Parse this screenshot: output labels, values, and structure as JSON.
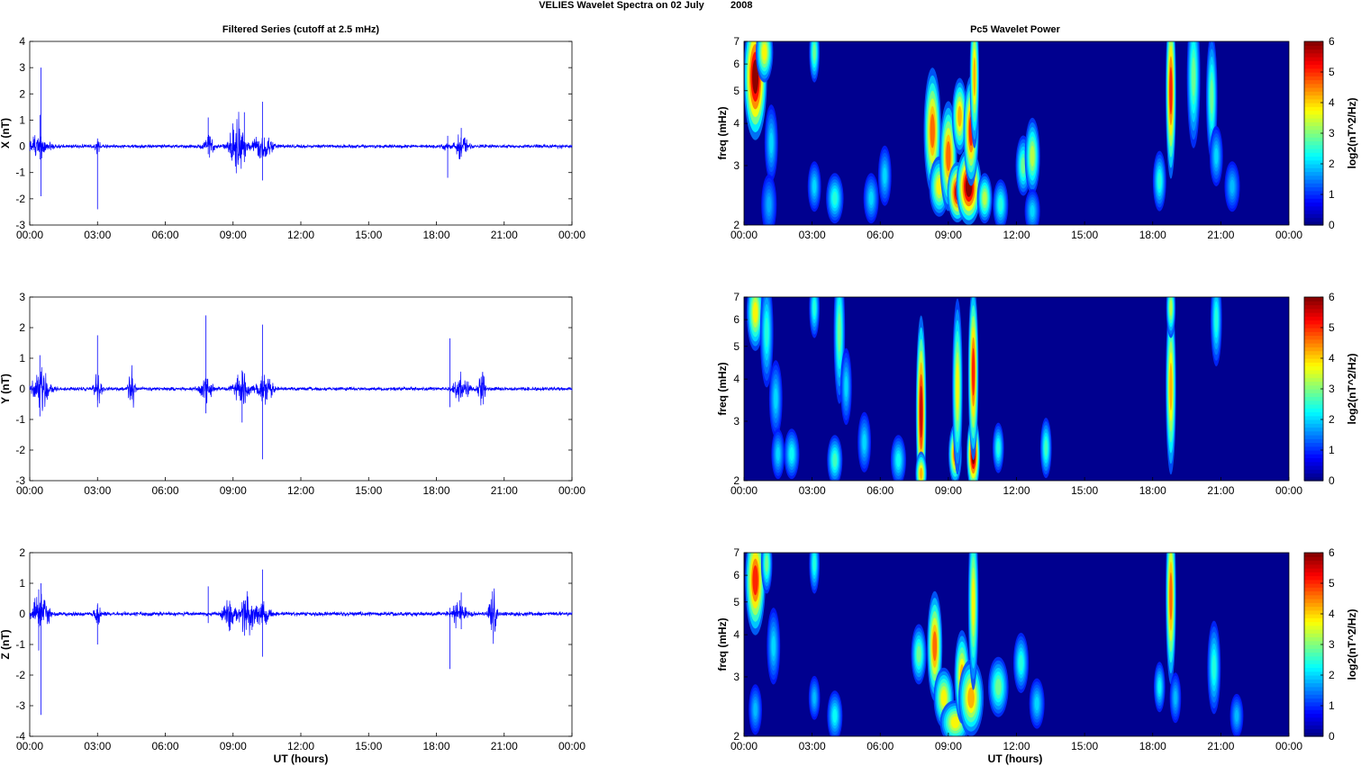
{
  "suptitle": "VELIES Wavelet Spectra on 02 July",
  "suptitle_year": "2008",
  "left_title": "Filtered Series (cutoff at 2.5 mHz)",
  "right_title": "Pc5 Wavelet Power",
  "xlabel": "UT (hours)",
  "colors": {
    "line": "#0000ff",
    "background": "#00008f"
  },
  "chart_data": [
    {
      "type": "line",
      "ylabel": "X (nT)",
      "ylim": [
        -3,
        4
      ],
      "yticks": [
        "-3",
        "-2",
        "-1",
        "0",
        "1",
        "2",
        "3",
        "4"
      ],
      "xlim": [
        0,
        24
      ],
      "xticks": [
        "00:00",
        "03:00",
        "06:00",
        "09:00",
        "12:00",
        "15:00",
        "18:00",
        "21:00",
        "00:00"
      ],
      "series": [
        {
          "color": "#0000ff",
          "noise": 0.08,
          "bursts": [
            [
              0.35,
              0.5,
              0.45
            ],
            [
              3.0,
              0.3,
              0.12
            ],
            [
              7.9,
              0.5,
              0.2
            ],
            [
              9.2,
              1.4,
              0.3
            ],
            [
              10.3,
              0.6,
              0.4
            ],
            [
              18.4,
              0.15,
              0.1
            ],
            [
              19.1,
              0.5,
              0.25
            ]
          ],
          "spikes": [
            [
              0.5,
              3.0,
              -1.9
            ],
            [
              0.45,
              1.2,
              -0.5
            ],
            [
              3.0,
              0.3,
              -2.4
            ],
            [
              7.9,
              1.1,
              -0.3
            ],
            [
              9.5,
              1.3,
              -0.6
            ],
            [
              10.3,
              1.7,
              -1.3
            ],
            [
              18.5,
              0.4,
              -1.2
            ],
            [
              19.1,
              0.7,
              -0.4
            ]
          ]
        }
      ]
    },
    {
      "type": "heatmap",
      "ylabel": "freq (mHz)",
      "yticks": [
        "2",
        "3",
        "4",
        "5",
        "6",
        "7"
      ],
      "ylim": [
        2,
        7
      ],
      "yscale": "log",
      "xlim": [
        0,
        24
      ],
      "xticks": [
        "00:00",
        "03:00",
        "06:00",
        "09:00",
        "12:00",
        "15:00",
        "18:00",
        "21:00",
        "00:00"
      ],
      "colorbar": {
        "label": "log2(nT^2/Hz)",
        "ticks": [
          "0",
          "1",
          "2",
          "3",
          "4",
          "5",
          "6"
        ],
        "range": [
          0,
          6
        ]
      },
      "blobs": [
        [
          0.5,
          5.5,
          0.18,
          0.35,
          6
        ],
        [
          0.9,
          6.5,
          0.12,
          0.15,
          3.5
        ],
        [
          1.2,
          3.5,
          0.08,
          0.2,
          1.5
        ],
        [
          1.1,
          2.3,
          0.1,
          0.15,
          1.2
        ],
        [
          3.1,
          6.5,
          0.05,
          0.15,
          2.5
        ],
        [
          3.1,
          2.6,
          0.08,
          0.12,
          1.5
        ],
        [
          4.0,
          2.4,
          0.12,
          0.12,
          2.0
        ],
        [
          5.6,
          2.4,
          0.1,
          0.12,
          1.5
        ],
        [
          6.2,
          2.8,
          0.08,
          0.15,
          1.5
        ],
        [
          8.3,
          3.8,
          0.12,
          0.35,
          4.5
        ],
        [
          8.6,
          2.6,
          0.15,
          0.15,
          3.5
        ],
        [
          9.0,
          3.2,
          0.12,
          0.3,
          4.5
        ],
        [
          9.4,
          2.5,
          0.15,
          0.15,
          5.5
        ],
        [
          9.5,
          4.2,
          0.1,
          0.2,
          4.0
        ],
        [
          9.9,
          2.6,
          0.2,
          0.2,
          6
        ],
        [
          10.0,
          3.8,
          0.1,
          0.3,
          5.0
        ],
        [
          10.15,
          5.5,
          0.04,
          0.4,
          4.0
        ],
        [
          10.6,
          2.4,
          0.1,
          0.12,
          3.0
        ],
        [
          11.3,
          2.3,
          0.1,
          0.12,
          2.0
        ],
        [
          12.3,
          3.0,
          0.1,
          0.15,
          2.5
        ],
        [
          12.7,
          3.2,
          0.1,
          0.2,
          3.0
        ],
        [
          12.7,
          2.2,
          0.1,
          0.1,
          1.5
        ],
        [
          18.3,
          2.7,
          0.08,
          0.15,
          2.0
        ],
        [
          18.8,
          5.0,
          0.05,
          0.5,
          5.0
        ],
        [
          19.8,
          5.5,
          0.08,
          0.4,
          2.5
        ],
        [
          20.6,
          4.8,
          0.06,
          0.35,
          2.5
        ],
        [
          20.8,
          3.2,
          0.08,
          0.15,
          1.5
        ],
        [
          21.5,
          2.6,
          0.1,
          0.12,
          1.3
        ]
      ]
    },
    {
      "type": "line",
      "ylabel": "Y (nT)",
      "ylim": [
        -3,
        3
      ],
      "yticks": [
        "-3",
        "-2",
        "-1",
        "0",
        "1",
        "2",
        "3"
      ],
      "xlim": [
        0,
        24
      ],
      "xticks": [
        "00:00",
        "03:00",
        "06:00",
        "09:00",
        "12:00",
        "15:00",
        "18:00",
        "21:00",
        "00:00"
      ],
      "series": [
        {
          "color": "#0000ff",
          "noise": 0.07,
          "bursts": [
            [
              0.5,
              0.8,
              0.35
            ],
            [
              3.0,
              0.6,
              0.15
            ],
            [
              4.5,
              1.0,
              0.12
            ],
            [
              7.8,
              0.5,
              0.25
            ],
            [
              9.4,
              0.7,
              0.3
            ],
            [
              10.4,
              0.5,
              0.35
            ],
            [
              19.1,
              0.6,
              0.3
            ],
            [
              20.0,
              1.0,
              0.12
            ]
          ],
          "spikes": [
            [
              3.0,
              1.75,
              -0.6
            ],
            [
              7.8,
              2.4,
              -0.8
            ],
            [
              9.4,
              0.6,
              -1.1
            ],
            [
              10.3,
              2.1,
              -2.3
            ],
            [
              18.6,
              1.65,
              -0.6
            ],
            [
              0.45,
              1.1,
              -0.9
            ]
          ]
        }
      ]
    },
    {
      "type": "heatmap",
      "ylabel": "freq (mHz)",
      "yticks": [
        "2",
        "3",
        "4",
        "5",
        "6",
        "7"
      ],
      "ylim": [
        2,
        7
      ],
      "yscale": "log",
      "xlim": [
        0,
        24
      ],
      "xticks": [
        "00:00",
        "03:00",
        "06:00",
        "09:00",
        "12:00",
        "15:00",
        "18:00",
        "21:00",
        "00:00"
      ],
      "colorbar": {
        "label": "log2(nT^2/Hz)",
        "ticks": [
          "0",
          "1",
          "2",
          "3",
          "4",
          "5",
          "6"
        ],
        "range": [
          0,
          6
        ]
      },
      "blobs": [
        [
          0.5,
          6.3,
          0.12,
          0.2,
          3.5
        ],
        [
          1.0,
          5.5,
          0.08,
          0.3,
          2.0
        ],
        [
          1.4,
          3.5,
          0.08,
          0.2,
          1.5
        ],
        [
          1.5,
          2.4,
          0.08,
          0.12,
          1.5
        ],
        [
          2.1,
          2.4,
          0.1,
          0.12,
          1.8
        ],
        [
          3.1,
          6.5,
          0.05,
          0.15,
          2.0
        ],
        [
          4.0,
          2.3,
          0.1,
          0.12,
          2.2
        ],
        [
          4.2,
          5.5,
          0.06,
          0.4,
          2.5
        ],
        [
          4.5,
          3.8,
          0.06,
          0.2,
          1.5
        ],
        [
          5.3,
          2.6,
          0.08,
          0.15,
          1.5
        ],
        [
          6.8,
          2.3,
          0.1,
          0.12,
          1.8
        ],
        [
          7.8,
          3.2,
          0.05,
          0.55,
          5.5
        ],
        [
          7.8,
          2.1,
          0.06,
          0.1,
          4.0
        ],
        [
          9.3,
          2.4,
          0.08,
          0.15,
          4.5
        ],
        [
          9.4,
          3.8,
          0.05,
          0.5,
          3.5
        ],
        [
          10.1,
          2.4,
          0.08,
          0.2,
          6.0
        ],
        [
          10.1,
          4.2,
          0.05,
          0.5,
          5.0
        ],
        [
          11.2,
          2.5,
          0.06,
          0.12,
          2.0
        ],
        [
          13.3,
          2.5,
          0.06,
          0.15,
          2.2
        ],
        [
          18.8,
          3.8,
          0.05,
          0.5,
          4.0
        ],
        [
          18.8,
          6.5,
          0.04,
          0.15,
          3.0
        ],
        [
          20.8,
          6.0,
          0.06,
          0.25,
          2.0
        ]
      ]
    },
    {
      "type": "line",
      "ylabel": "Z (nT)",
      "ylim": [
        -4,
        2
      ],
      "yticks": [
        "-4",
        "-3",
        "-2",
        "-1",
        "0",
        "1",
        "2"
      ],
      "xlim": [
        0,
        24
      ],
      "xticks": [
        "00:00",
        "03:00",
        "06:00",
        "09:00",
        "12:00",
        "15:00",
        "18:00",
        "21:00",
        "00:00"
      ],
      "series": [
        {
          "color": "#0000ff",
          "noise": 0.08,
          "bursts": [
            [
              0.5,
              0.8,
              0.35
            ],
            [
              3.0,
              0.5,
              0.12
            ],
            [
              8.8,
              0.6,
              0.25
            ],
            [
              9.6,
              0.8,
              0.3
            ],
            [
              10.3,
              0.4,
              0.3
            ],
            [
              19.0,
              0.5,
              0.3
            ],
            [
              20.5,
              1.0,
              0.15
            ]
          ],
          "spikes": [
            [
              0.5,
              1.0,
              -3.3
            ],
            [
              0.4,
              0.8,
              -1.2
            ],
            [
              3.0,
              0.3,
              -1.0
            ],
            [
              7.9,
              0.9,
              -0.3
            ],
            [
              10.3,
              1.45,
              -1.4
            ],
            [
              18.6,
              0.2,
              -1.8
            ],
            [
              19.1,
              0.7,
              -0.5
            ]
          ]
        }
      ]
    },
    {
      "type": "heatmap",
      "ylabel": "freq (mHz)",
      "yticks": [
        "2",
        "3",
        "4",
        "5",
        "6",
        "7"
      ],
      "ylim": [
        2,
        7
      ],
      "yscale": "log",
      "xlim": [
        0,
        24
      ],
      "xticks": [
        "00:00",
        "03:00",
        "06:00",
        "09:00",
        "12:00",
        "15:00",
        "18:00",
        "21:00",
        "00:00"
      ],
      "colorbar": {
        "label": "log2(nT^2/Hz)",
        "ticks": [
          "0",
          "1",
          "2",
          "3",
          "4",
          "5",
          "6"
        ],
        "range": [
          0,
          6
        ]
      },
      "blobs": [
        [
          0.5,
          5.8,
          0.15,
          0.3,
          5.0
        ],
        [
          1.0,
          6.5,
          0.06,
          0.15,
          2.5
        ],
        [
          1.3,
          3.7,
          0.08,
          0.2,
          1.5
        ],
        [
          0.5,
          2.4,
          0.08,
          0.12,
          1.3
        ],
        [
          3.1,
          6.5,
          0.05,
          0.15,
          2.0
        ],
        [
          3.1,
          2.6,
          0.06,
          0.1,
          1.3
        ],
        [
          4.0,
          2.3,
          0.1,
          0.12,
          1.8
        ],
        [
          7.7,
          3.5,
          0.1,
          0.15,
          2.5
        ],
        [
          8.4,
          3.7,
          0.1,
          0.3,
          4.5
        ],
        [
          8.8,
          2.6,
          0.15,
          0.15,
          3.5
        ],
        [
          9.3,
          2.2,
          0.25,
          0.1,
          3.5
        ],
        [
          9.6,
          3.0,
          0.1,
          0.25,
          4.0
        ],
        [
          10.0,
          2.6,
          0.2,
          0.2,
          4.0
        ],
        [
          10.1,
          5.0,
          0.05,
          0.5,
          3.5
        ],
        [
          11.2,
          2.8,
          0.15,
          0.15,
          2.5
        ],
        [
          12.2,
          3.3,
          0.1,
          0.15,
          2.0
        ],
        [
          12.9,
          2.5,
          0.1,
          0.12,
          1.5
        ],
        [
          18.3,
          2.8,
          0.06,
          0.12,
          1.8
        ],
        [
          18.8,
          5.2,
          0.05,
          0.5,
          4.5
        ],
        [
          19.0,
          2.6,
          0.06,
          0.12,
          1.3
        ],
        [
          20.7,
          3.2,
          0.08,
          0.25,
          2.0
        ],
        [
          21.7,
          2.3,
          0.08,
          0.1,
          1.3
        ]
      ]
    }
  ]
}
